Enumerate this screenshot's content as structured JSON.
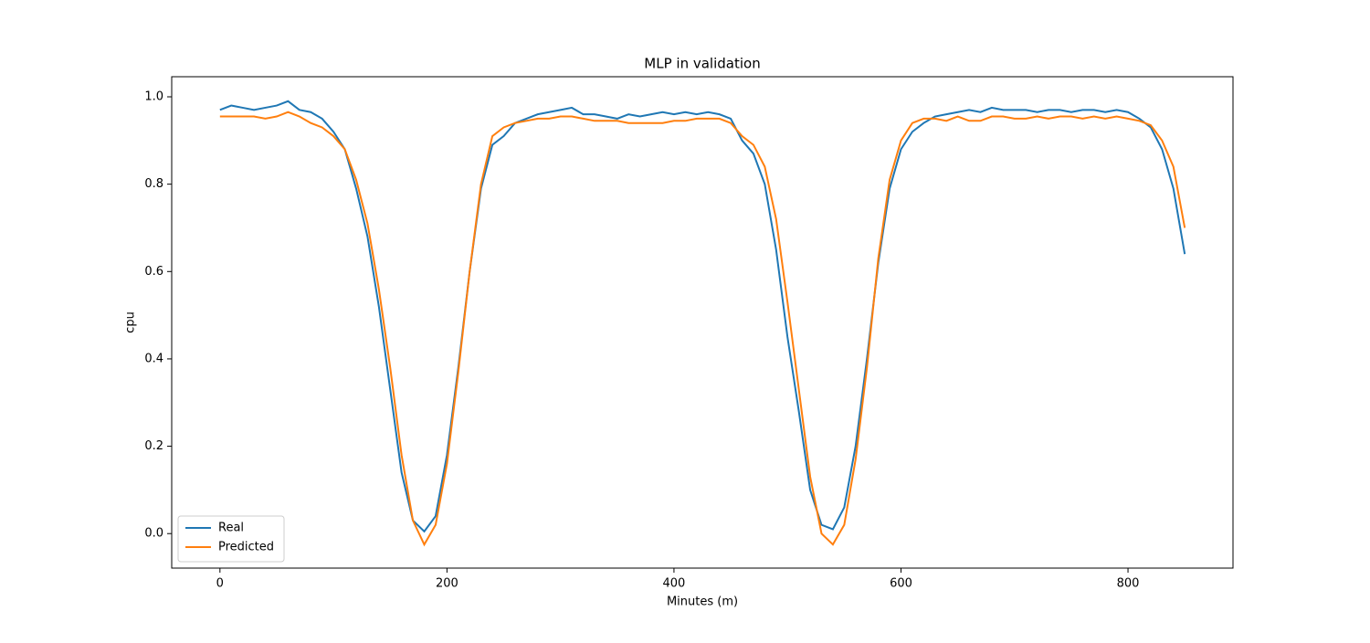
{
  "chart_data": {
    "type": "line",
    "title": "MLP in validation",
    "x_label": "Minutes (m)",
    "y_label": "cpu",
    "x": [
      0,
      10,
      20,
      30,
      40,
      50,
      60,
      70,
      80,
      90,
      100,
      110,
      120,
      130,
      140,
      150,
      160,
      170,
      180,
      190,
      200,
      210,
      220,
      230,
      240,
      250,
      260,
      270,
      280,
      290,
      300,
      310,
      320,
      330,
      340,
      350,
      360,
      370,
      380,
      390,
      400,
      410,
      420,
      430,
      440,
      450,
      460,
      470,
      480,
      490,
      500,
      510,
      520,
      530,
      540,
      550,
      560,
      570,
      580,
      590,
      600,
      610,
      620,
      630,
      640,
      650,
      660,
      670,
      680,
      690,
      700,
      710,
      720,
      730,
      740,
      750,
      760,
      770,
      780,
      790,
      800,
      810,
      820,
      830,
      840,
      850
    ],
    "series": [
      {
        "name": "Real",
        "color": "#1f77b4",
        "values": [
          0.97,
          0.98,
          0.975,
          0.97,
          0.975,
          0.98,
          0.99,
          0.97,
          0.965,
          0.95,
          0.92,
          0.88,
          0.79,
          0.68,
          0.52,
          0.33,
          0.14,
          0.03,
          0.005,
          0.04,
          0.18,
          0.38,
          0.6,
          0.79,
          0.89,
          0.91,
          0.94,
          0.95,
          0.96,
          0.965,
          0.97,
          0.975,
          0.96,
          0.96,
          0.955,
          0.95,
          0.96,
          0.955,
          0.96,
          0.965,
          0.96,
          0.965,
          0.96,
          0.965,
          0.96,
          0.95,
          0.9,
          0.87,
          0.8,
          0.65,
          0.45,
          0.28,
          0.1,
          0.02,
          0.01,
          0.06,
          0.2,
          0.4,
          0.62,
          0.79,
          0.88,
          0.92,
          0.94,
          0.955,
          0.96,
          0.965,
          0.97,
          0.965,
          0.975,
          0.97,
          0.97,
          0.97,
          0.965,
          0.97,
          0.97,
          0.965,
          0.97,
          0.97,
          0.965,
          0.97,
          0.965,
          0.95,
          0.93,
          0.88,
          0.79,
          0.64
        ]
      },
      {
        "name": "Predicted",
        "color": "#ff7f0e",
        "values": [
          0.955,
          0.955,
          0.955,
          0.955,
          0.95,
          0.955,
          0.965,
          0.955,
          0.94,
          0.93,
          0.91,
          0.88,
          0.81,
          0.71,
          0.56,
          0.38,
          0.18,
          0.03,
          -0.025,
          0.02,
          0.16,
          0.37,
          0.6,
          0.8,
          0.91,
          0.93,
          0.94,
          0.945,
          0.95,
          0.95,
          0.955,
          0.955,
          0.95,
          0.945,
          0.945,
          0.945,
          0.94,
          0.94,
          0.94,
          0.94,
          0.945,
          0.945,
          0.95,
          0.95,
          0.95,
          0.94,
          0.91,
          0.89,
          0.84,
          0.72,
          0.53,
          0.33,
          0.13,
          0.0,
          -0.025,
          0.02,
          0.17,
          0.38,
          0.63,
          0.81,
          0.9,
          0.94,
          0.95,
          0.95,
          0.945,
          0.955,
          0.945,
          0.945,
          0.955,
          0.955,
          0.95,
          0.95,
          0.955,
          0.95,
          0.955,
          0.955,
          0.95,
          0.955,
          0.95,
          0.955,
          0.95,
          0.945,
          0.935,
          0.9,
          0.84,
          0.7
        ]
      }
    ],
    "xlim": [
      -42.5,
      892.5
    ],
    "ylim": [
      -0.079,
      1.046
    ],
    "xticks": [
      0,
      200,
      400,
      600,
      800
    ],
    "yticks": [
      {
        "value": 0,
        "label": "0.0"
      },
      0.2,
      0.4,
      0.6,
      0.8,
      {
        "value": 1,
        "label": "1.0"
      }
    ],
    "legend": "lower left"
  }
}
